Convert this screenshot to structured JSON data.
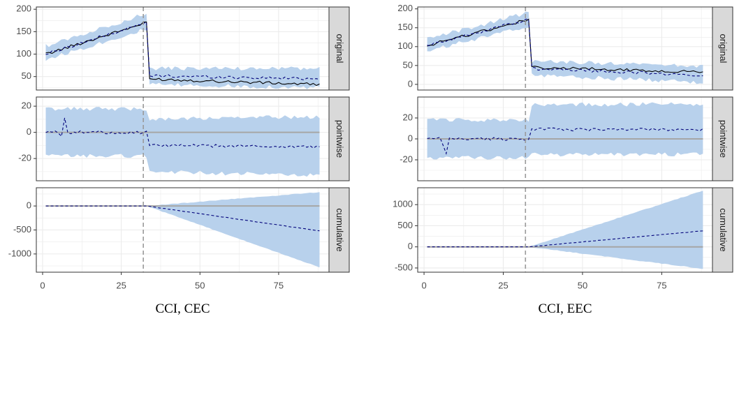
{
  "colors": {
    "band": "#b8d1ec",
    "actual_line": "#000000",
    "predicted_line": "#00007a",
    "zero_line": "#a6a6a6",
    "intervention_line": "#9a9a9a",
    "grid": "#ebebeb",
    "panel_border": "#333333",
    "strip_fill": "#d9d9d9"
  },
  "chart_data": [
    {
      "type": "line",
      "title": "CCI, CEC",
      "x_ticks": [
        "0",
        "25",
        "50",
        "75"
      ],
      "x_tick_values": [
        0,
        25,
        50,
        75
      ],
      "xlim": [
        -2,
        91
      ],
      "n_points": 88,
      "intervention_x": 32,
      "panels": [
        {
          "name": "original",
          "ylim": [
            20,
            205
          ],
          "y_ticks": [
            "50",
            "100",
            "150",
            "200"
          ],
          "y_tick_values": [
            50,
            100,
            150,
            200
          ],
          "series": [
            {
              "name": "actual",
              "pre": [
                100,
                170
              ],
              "post": [
                45,
                32
              ]
            },
            {
              "name": "predicted",
              "pre": [
                100,
                170
              ],
              "post": [
                52,
                45
              ]
            },
            {
              "name": "band_lower",
              "pre": [
                88,
                156
              ],
              "post": [
                32,
                25
              ]
            },
            {
              "name": "band_upper",
              "pre": [
                118,
                190
              ],
              "post": [
                68,
                68
              ]
            }
          ]
        },
        {
          "name": "pointwise",
          "ylim": [
            -37,
            27
          ],
          "y_ticks": [
            "-20",
            "0",
            "20"
          ],
          "y_tick_values": [
            -20,
            0,
            20
          ],
          "series": [
            {
              "name": "effect",
              "pre": [
                0,
                0
              ],
              "post": [
                -10,
                -11
              ]
            },
            {
              "name": "band_lower",
              "pre": [
                -18,
                -18
              ],
              "post": [
                -30,
                -33
              ]
            },
            {
              "name": "band_upper",
              "pre": [
                18,
                18
              ],
              "post": [
                10,
                12
              ]
            }
          ]
        },
        {
          "name": "cumulative",
          "ylim": [
            -1380,
            380
          ],
          "y_ticks": [
            "-1000",
            "-500",
            "0"
          ],
          "y_tick_values": [
            -1000,
            -500,
            0
          ],
          "series": [
            {
              "name": "effect",
              "pre": [
                0,
                0
              ],
              "post": [
                0,
                -520
              ]
            },
            {
              "name": "band_lower",
              "pre": [
                0,
                0
              ],
              "post": [
                0,
                -1280
              ]
            },
            {
              "name": "band_upper",
              "pre": [
                0,
                0
              ],
              "post": [
                0,
                290
              ]
            }
          ]
        }
      ]
    },
    {
      "type": "line",
      "title": "CCI, EEC",
      "x_ticks": [
        "0",
        "25",
        "50",
        "75"
      ],
      "x_tick_values": [
        0,
        25,
        50,
        75
      ],
      "xlim": [
        -2,
        91
      ],
      "n_points": 88,
      "intervention_x": 32,
      "panels": [
        {
          "name": "original",
          "ylim": [
            -15,
            205
          ],
          "y_ticks": [
            "0",
            "50",
            "100",
            "150",
            "200"
          ],
          "y_tick_values": [
            0,
            50,
            100,
            150,
            200
          ],
          "series": [
            {
              "name": "actual",
              "pre": [
                103,
                172
              ],
              "post": [
                45,
                33
              ]
            },
            {
              "name": "predicted",
              "pre": [
                103,
                172
              ],
              "post": [
                42,
                25
              ]
            },
            {
              "name": "band_lower",
              "pre": [
                88,
                155
              ],
              "post": [
                25,
                5
              ]
            },
            {
              "name": "band_upper",
              "pre": [
                120,
                190
              ],
              "post": [
                62,
                48
              ]
            }
          ]
        },
        {
          "name": "pointwise",
          "ylim": [
            -40,
            40
          ],
          "y_ticks": [
            "-20",
            "0",
            "20"
          ],
          "y_tick_values": [
            -20,
            0,
            20
          ],
          "series": [
            {
              "name": "effect",
              "pre": [
                0,
                0
              ],
              "post": [
                9,
                9
              ]
            },
            {
              "name": "band_lower",
              "pre": [
                -18,
                -18
              ],
              "post": [
                -15,
                -15
              ]
            },
            {
              "name": "band_upper",
              "pre": [
                18,
                18
              ],
              "post": [
                33,
                33
              ]
            }
          ]
        },
        {
          "name": "cumulative",
          "ylim": [
            -600,
            1400
          ],
          "y_ticks": [
            "-500",
            "0",
            "500",
            "1000"
          ],
          "y_tick_values": [
            -500,
            0,
            500,
            1000
          ],
          "series": [
            {
              "name": "effect",
              "pre": [
                0,
                0
              ],
              "post": [
                0,
                380
              ]
            },
            {
              "name": "band_lower",
              "pre": [
                0,
                0
              ],
              "post": [
                0,
                -520
              ]
            },
            {
              "name": "band_upper",
              "pre": [
                0,
                0
              ],
              "post": [
                0,
                1330
              ]
            }
          ]
        }
      ]
    }
  ]
}
